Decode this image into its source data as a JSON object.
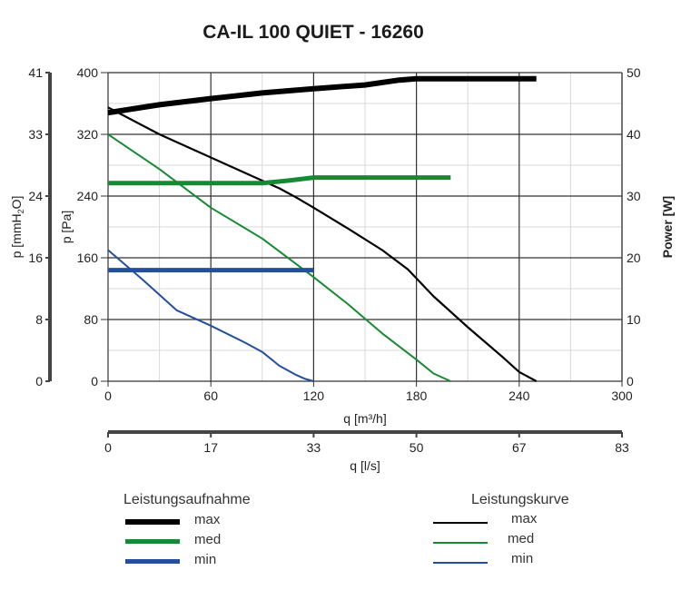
{
  "chart_data": {
    "type": "line",
    "title": "CA-IL 100 QUIET - 16260",
    "xlabel": "q [m³/h]",
    "xlabel_secondary": "q [l/s]",
    "ylabel": "p [Pa]",
    "ylabel_secondary_left": "p [mmH2O]",
    "ylabel_right": "Power [W]",
    "xlim": [
      0,
      300
    ],
    "ylim": [
      0,
      400
    ],
    "ylim_right": [
      0,
      50
    ],
    "x_ticks": [
      "0",
      "60",
      "120",
      "180",
      "240",
      "300"
    ],
    "x_ticks_secondary": [
      "0",
      "17",
      "33",
      "50",
      "67",
      "83"
    ],
    "y_ticks": [
      "0",
      "80",
      "160",
      "240",
      "320",
      "400"
    ],
    "y_ticks_mmH2O": [
      "0",
      "8",
      "16",
      "24",
      "33",
      "41"
    ],
    "y_ticks_right": [
      "0",
      "10",
      "20",
      "30",
      "40",
      "50"
    ],
    "grid": true,
    "series": [
      {
        "name": "Leistungskurve max",
        "group": "Leistungskurve",
        "axis": "Pa",
        "color": "#000000",
        "width": 2.2,
        "x": [
          0,
          30,
          60,
          80,
          100,
          110,
          120,
          140,
          160,
          175,
          190,
          210,
          230,
          240,
          250
        ],
        "y": [
          355,
          320,
          290,
          270,
          250,
          238,
          225,
          198,
          170,
          145,
          110,
          70,
          32,
          12,
          0
        ]
      },
      {
        "name": "Leistungskurve med",
        "group": "Leistungskurve",
        "axis": "Pa",
        "color": "#168a32",
        "width": 2.0,
        "x": [
          0,
          30,
          60,
          90,
          120,
          140,
          160,
          180,
          190,
          200
        ],
        "y": [
          320,
          275,
          225,
          185,
          135,
          100,
          62,
          28,
          10,
          0
        ]
      },
      {
        "name": "Leistungskurve min",
        "group": "Leistungskurve",
        "axis": "Pa",
        "color": "#234f9e",
        "width": 2.0,
        "x": [
          0,
          20,
          40,
          60,
          80,
          90,
          100,
          110,
          115,
          120
        ],
        "y": [
          170,
          132,
          92,
          72,
          50,
          38,
          20,
          8,
          3,
          0
        ]
      },
      {
        "name": "Leistungsaufnahme max",
        "group": "Leistungsaufnahme",
        "axis": "W",
        "color": "#000000",
        "width": 6,
        "x": [
          0,
          30,
          60,
          90,
          120,
          150,
          170,
          180,
          210,
          250
        ],
        "y": [
          43.5,
          44.8,
          45.8,
          46.7,
          47.4,
          48.0,
          48.8,
          49.0,
          49.0,
          49.0
        ]
      },
      {
        "name": "Leistungsaufnahme med",
        "group": "Leistungsaufnahme",
        "axis": "W",
        "color": "#168a32",
        "width": 5,
        "x": [
          0,
          30,
          60,
          90,
          105,
          120,
          150,
          200
        ],
        "y": [
          32.1,
          32.1,
          32.1,
          32.1,
          32.5,
          33.0,
          33.0,
          33.0
        ]
      },
      {
        "name": "Leistungsaufnahme min",
        "group": "Leistungsaufnahme",
        "axis": "W",
        "color": "#234f9e",
        "width": 5,
        "x": [
          0,
          60,
          120
        ],
        "y": [
          18.0,
          18.0,
          18.0
        ]
      }
    ],
    "legend": {
      "position": "bottom",
      "groups": [
        {
          "title": "Leistungsaufnahme",
          "entries": [
            "max",
            "med",
            "min"
          ]
        },
        {
          "title": "Leistungskurve",
          "entries": [
            "max",
            "med",
            "min"
          ]
        }
      ]
    }
  },
  "title": "CA-IL 100 QUIET - 16260",
  "axes": {
    "x_label": "q [m³/h]",
    "x2_label": "q [l/s]",
    "y_label": "p [Pa]",
    "y_mm_label_main": "p [mmH",
    "y_mm_label_sub": "2",
    "y_mm_label_end": "O]",
    "y_right_label": "Power [W]"
  },
  "legend": {
    "left_title": "Leistungsaufnahme",
    "right_title": "Leistungskurve",
    "labels": [
      "max",
      "med",
      "min"
    ],
    "colors": [
      "#000000",
      "#168a32",
      "#234f9e"
    ]
  }
}
